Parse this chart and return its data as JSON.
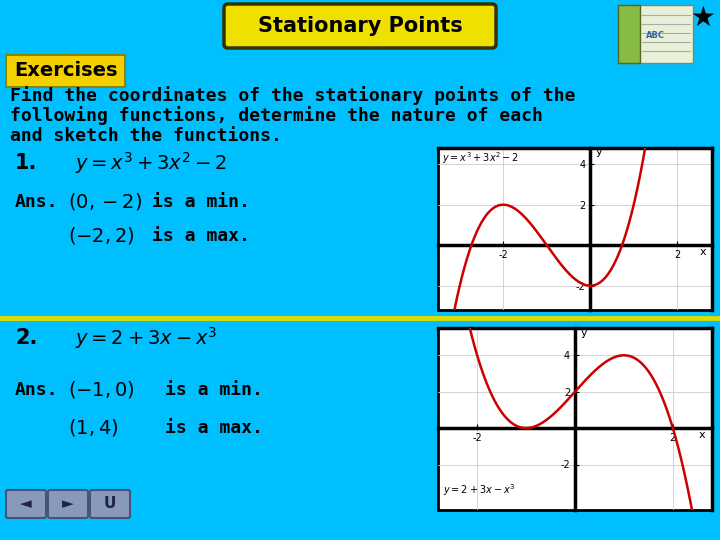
{
  "bg_color": "#00BFFF",
  "title": "Stationary Points",
  "title_bg": "#f0e000",
  "exercises_label": "Exercises",
  "exercises_bg": "#f5d000",
  "body_text_line1": "Find the coordinates of the stationary points of the",
  "body_text_line2": "following functions, determine the nature of each",
  "body_text_line3": "and sketch the functions.",
  "q1_label": "1.",
  "q1_formula": "$y = x^3 + 3x^2 - 2$",
  "q1_ans_label": "Ans.",
  "q1_ans1_coords": "$(0,-2)$",
  "q1_ans1_text": "is a min.",
  "q1_ans2_coords": "$(-2,2)$",
  "q1_ans2_text": "is a max.",
  "q2_label": "2.",
  "q2_formula": "$y = 2 + 3x - x^3$",
  "q2_ans_label": "Ans.",
  "q2_ans1_coords": "$(-1, 0)$",
  "q2_ans1_text": "is a min.",
  "q2_ans2_coords": "$(1, 4)$",
  "q2_ans2_text": "is a max.",
  "curve_color": "#cc0000",
  "graph_bg": "#ffffff",
  "graph_grid_color": "#cccccc",
  "separator_color": "#dddd00",
  "nav_color": "#8899bb",
  "star_color": "#000000",
  "title_fontsize": 15,
  "body_fontsize": 13,
  "ans_fontsize": 13
}
